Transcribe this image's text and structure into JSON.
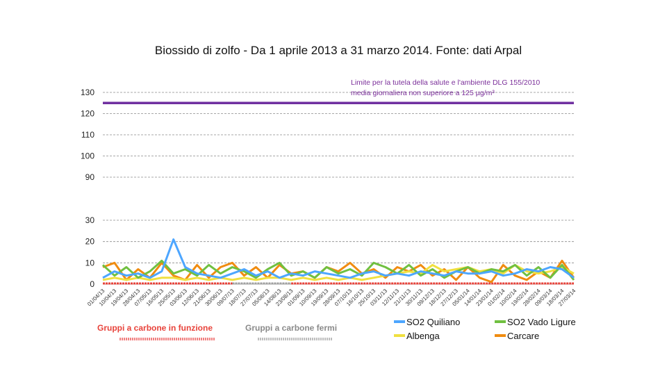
{
  "chart_data": {
    "type": "line",
    "title": "Biossido di zolfo - Da 1 aprile 2013 a 31 marzo 2014. Fonte: dati Arpal",
    "xlabel": "",
    "ylabel": "",
    "y_ticks_upper": [
      90,
      100,
      110,
      120,
      130
    ],
    "y_ticks_lower": [
      0,
      10,
      20,
      30
    ],
    "ylim_upper": [
      85,
      133
    ],
    "ylim_lower": [
      -1,
      33
    ],
    "grid": true,
    "categories": [
      "01/04/13",
      "10/04/13",
      "19/04/13",
      "28/04/13",
      "07/05/13",
      "16/05/13",
      "25/05/13",
      "03/06/13",
      "12/06/13",
      "21/06/13",
      "30/06/13",
      "09/07/13",
      "18/07/13",
      "27/07/13",
      "05/08/13",
      "14/08/13",
      "23/08/13",
      "01/09/13",
      "10/09/13",
      "19/09/13",
      "28/09/13",
      "07/10/13",
      "16/10/13",
      "25/10/13",
      "03/11/13",
      "12/11/13",
      "21/11/13",
      "30/11/13",
      "09/12/13",
      "18/12/13",
      "27/12/13",
      "05/01/14",
      "14/01/14",
      "23/01/14",
      "01/02/14",
      "10/02/14",
      "19/02/14",
      "28/02/14",
      "09/03/14",
      "18/03/14",
      "27/03/14"
    ],
    "limit_line": {
      "value": 125,
      "color": "#7030a0",
      "label_line1": "Limite per la tutela della salute e l'ambiente DLG 155/2010",
      "label_line2": "media giornaliera non superiore a 125 µg/m³"
    },
    "series": [
      {
        "name": "SO2 Quiliano",
        "color": "#4da6ff",
        "values": [
          3,
          6,
          4,
          5,
          3,
          6,
          21,
          8,
          5,
          4,
          3,
          5,
          7,
          4,
          6,
          3,
          5,
          4,
          6,
          5,
          4,
          3,
          5,
          6,
          4,
          5,
          4,
          6,
          5,
          4,
          6,
          5,
          5,
          6,
          4,
          5,
          7,
          6,
          8,
          7,
          3
        ]
      },
      {
        "name": "SO2 Vado Ligure",
        "color": "#70c040",
        "values": [
          9,
          4,
          8,
          3,
          6,
          11,
          5,
          7,
          4,
          9,
          5,
          8,
          6,
          3,
          7,
          10,
          4,
          6,
          3,
          8,
          5,
          7,
          4,
          10,
          8,
          5,
          9,
          4,
          7,
          3,
          6,
          8,
          5,
          7,
          6,
          9,
          4,
          8,
          3,
          9,
          2
        ]
      },
      {
        "name": "Albenga",
        "color": "#f0e040",
        "values": [
          2,
          3,
          2,
          3,
          2,
          3,
          3,
          2,
          3,
          2,
          3,
          2,
          3,
          2,
          3,
          3,
          2,
          3,
          2,
          3,
          2,
          3,
          2,
          3,
          4,
          5,
          6,
          5,
          9,
          6,
          7,
          8,
          6,
          7,
          5,
          9,
          6,
          5,
          6,
          8,
          5
        ]
      },
      {
        "name": "Carcare",
        "color": "#f08c10",
        "values": [
          8,
          10,
          2,
          7,
          3,
          10,
          4,
          2,
          9,
          3,
          8,
          10,
          4,
          8,
          3,
          9,
          5,
          6,
          3,
          8,
          6,
          10,
          5,
          7,
          3,
          8,
          6,
          9,
          4,
          7,
          2,
          8,
          3,
          1,
          9,
          4,
          2,
          6,
          3,
          11,
          3
        ]
      }
    ],
    "legend": {
      "placement": "bottom-right",
      "entries": [
        "SO2 Quiliano",
        "SO2 Vado Ligure",
        "Albenga",
        "Carcare"
      ]
    },
    "annotations": {
      "running_label": "Gruppi a carbone in funzione",
      "running_color": "#e8423a",
      "stopped_label": "Gruppi a carbone fermi",
      "stopped_color": "#a0a0a0"
    }
  }
}
